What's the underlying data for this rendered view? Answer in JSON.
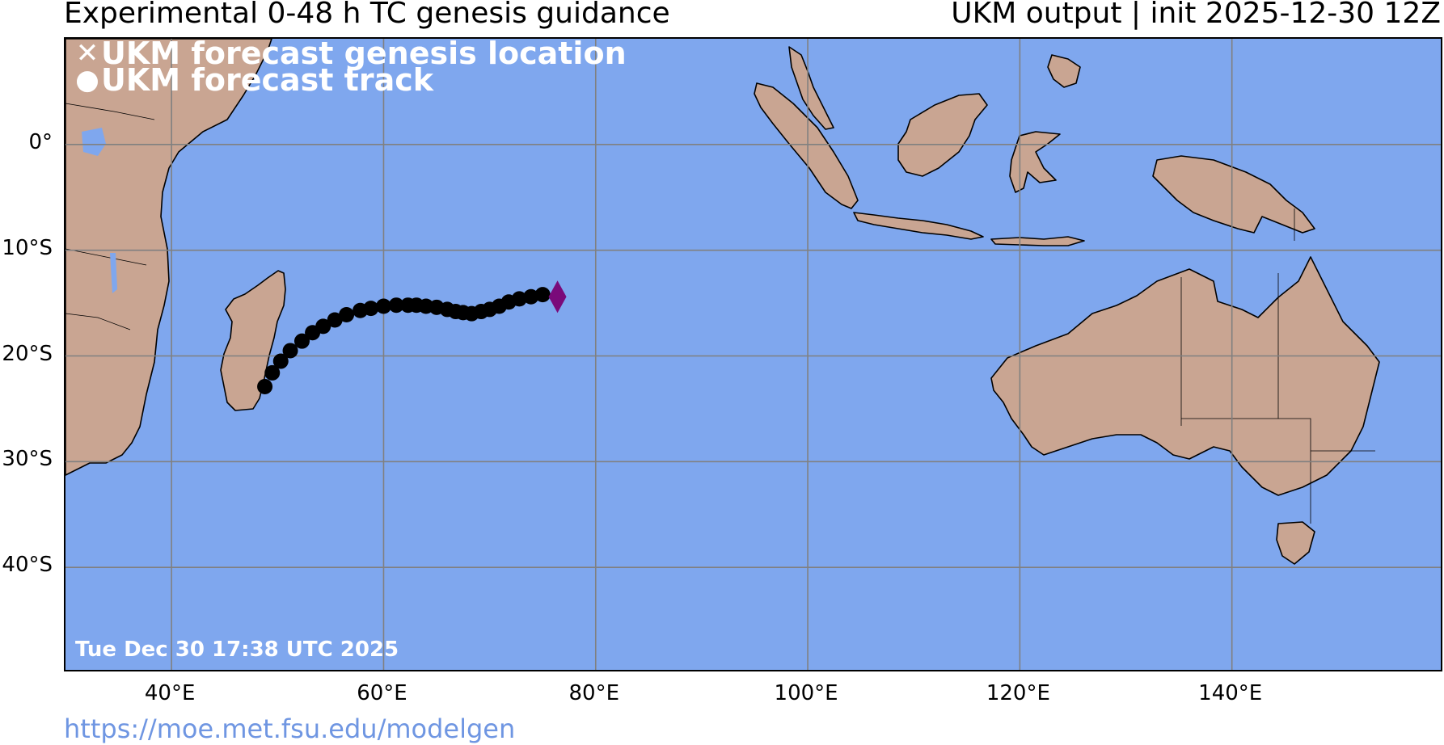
{
  "header": {
    "title": "Experimental 0-48 h TC genesis guidance",
    "model_info": "UKM output | init 2025-12-30 12Z"
  },
  "legend": {
    "genesis_label": "UKM forecast genesis location",
    "track_label": "UKM forecast track",
    "genesis_icon": "x-icon",
    "track_icon": "dot-icon"
  },
  "timestamp": "Tue Dec 30 17:38 UTC 2025",
  "axes": {
    "lat_labels": [
      "0°",
      "10°S",
      "20°S",
      "30°S",
      "40°S"
    ],
    "lon_labels": [
      "40°E",
      "60°E",
      "80°E",
      "100°E",
      "120°E",
      "140°E"
    ]
  },
  "map": {
    "extent_lon": [
      30,
      160
    ],
    "extent_lat": [
      -50,
      10
    ],
    "gridlines": true,
    "colors": {
      "ocean": "#7fa7ee",
      "land": "#c9a592",
      "grid": "#808080",
      "track": "#000000",
      "genesis_marker": "#7a0a7a"
    },
    "track_points": [
      [
        48.8,
        -22.9
      ],
      [
        49.5,
        -21.6
      ],
      [
        50.3,
        -20.5
      ],
      [
        51.2,
        -19.5
      ],
      [
        52.3,
        -18.6
      ],
      [
        53.3,
        -17.8
      ],
      [
        54.3,
        -17.2
      ],
      [
        55.4,
        -16.6
      ],
      [
        56.5,
        -16.1
      ],
      [
        57.8,
        -15.7
      ],
      [
        58.8,
        -15.5
      ],
      [
        60.0,
        -15.3
      ],
      [
        61.2,
        -15.2
      ],
      [
        62.3,
        -15.2
      ],
      [
        63.1,
        -15.2
      ],
      [
        64.0,
        -15.3
      ],
      [
        65.0,
        -15.4
      ],
      [
        66.0,
        -15.6
      ],
      [
        66.8,
        -15.8
      ],
      [
        67.5,
        -15.9
      ],
      [
        68.3,
        -16.0
      ],
      [
        69.2,
        -15.8
      ],
      [
        70.0,
        -15.6
      ],
      [
        70.9,
        -15.3
      ],
      [
        71.8,
        -14.9
      ],
      [
        72.8,
        -14.6
      ],
      [
        73.9,
        -14.4
      ],
      [
        75.0,
        -14.2
      ]
    ],
    "genesis_point": [
      76.4,
      -14.4
    ]
  },
  "footer": {
    "link": "https://moe.met.fsu.edu/modelgen"
  }
}
